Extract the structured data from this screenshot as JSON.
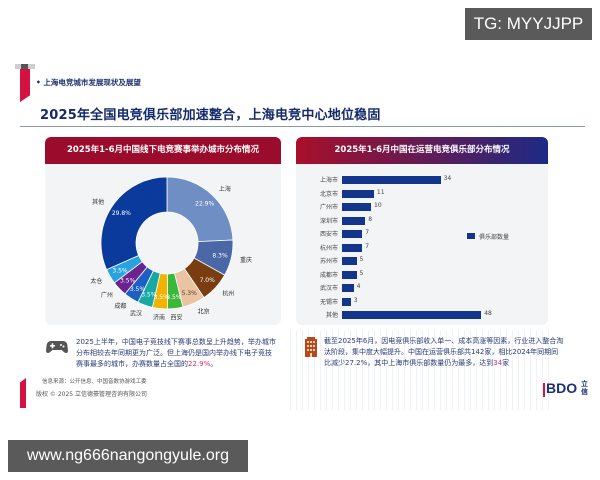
{
  "watermarks": {
    "top_right": "TG: MYYJJPP",
    "bottom_left": "www.ng666nangongyule.org"
  },
  "header": {
    "subtitle": "• 上海电竞城市发展现状及展望",
    "title": "2025年全国电竞俱乐部加速整合，上海电竞中心地位稳固"
  },
  "left_panel": {
    "title": "2025年1-6月中国线下电竞赛事举办城市分布情况",
    "note": {
      "text_before": "2025上半年，中国电子竞技线下赛事总数呈上升趋势，举办城市分布相较去年同期更为广泛。但上海仍是国内举办线下电子竞技赛事最多的城市，办赛数量占全国的",
      "highlight": "22.9%",
      "text_after": "。"
    },
    "source": "信息来源：公开信息、中国音数协游戏工委",
    "icon": "gamepad-icon"
  },
  "right_panel": {
    "title": "2025年1-6月中国在运营电竞俱乐部分布情况",
    "legend": "俱乐部数量",
    "note": {
      "text_before": "截至2025年6月，因电竞俱乐部收入单一、成本高涨等因素，行业进入整合淘汰阶段，集中度大幅提升。中国在运营俱乐部共142家，相比2024年同期同比减少27.2%，其中上海市俱乐部数量仍为最多，达到",
      "highlight": "34",
      "text_after": "家"
    },
    "icon": "building-icon"
  },
  "footer": {
    "copyright": "版权 © 2025 立信德豪管理咨询有限公司",
    "logo_text": "BDO",
    "logo_cn": "立信"
  },
  "colors": {
    "accent_red": "#d4113f",
    "panel_header_red": "#9b0b2c",
    "navy": "#152a6b",
    "bar_blue": "#14358c",
    "highlight_pink": "#d2306a"
  },
  "chart_data": [
    {
      "type": "pie",
      "title": "2025年1-6月中国线下电竞赛事举办城市分布情况",
      "donut": true,
      "categories": [
        "上海",
        "重庆",
        "杭州",
        "北京",
        "西安",
        "济南",
        "武汉",
        "成都",
        "广州",
        "太仓",
        "其他"
      ],
      "values": [
        22.9,
        8.3,
        7.0,
        5.3,
        3.5,
        3.5,
        3.5,
        3.5,
        3.5,
        3.5,
        29.8
      ],
      "labels": [
        "22.9%",
        "8.3%",
        "7.0%",
        "5.3%",
        "3.5%",
        "3.5%",
        "3.5%",
        "3.5%",
        "3.5%",
        "3.5%",
        "29.8%"
      ],
      "colors": [
        "#6f8fc4",
        "#4a67a6",
        "#7a3d12",
        "#eac4a2",
        "#3bb83b",
        "#f0b400",
        "#17a9a4",
        "#1e5fc4",
        "#6b238f",
        "#29a3e0",
        "#0a3a9c"
      ]
    },
    {
      "type": "bar",
      "orientation": "horizontal",
      "title": "2025年1-6月中国在运营电竞俱乐部分布情况",
      "categories": [
        "上海市",
        "北京市",
        "广州市",
        "深圳市",
        "西安市",
        "杭州市",
        "苏州市",
        "成都市",
        "武汉市",
        "无锡市",
        "其他"
      ],
      "series": [
        {
          "name": "俱乐部数量",
          "values": [
            34,
            11,
            10,
            8,
            7,
            7,
            5,
            5,
            4,
            3,
            48
          ]
        }
      ],
      "legend_position": "right",
      "grid": false
    }
  ]
}
